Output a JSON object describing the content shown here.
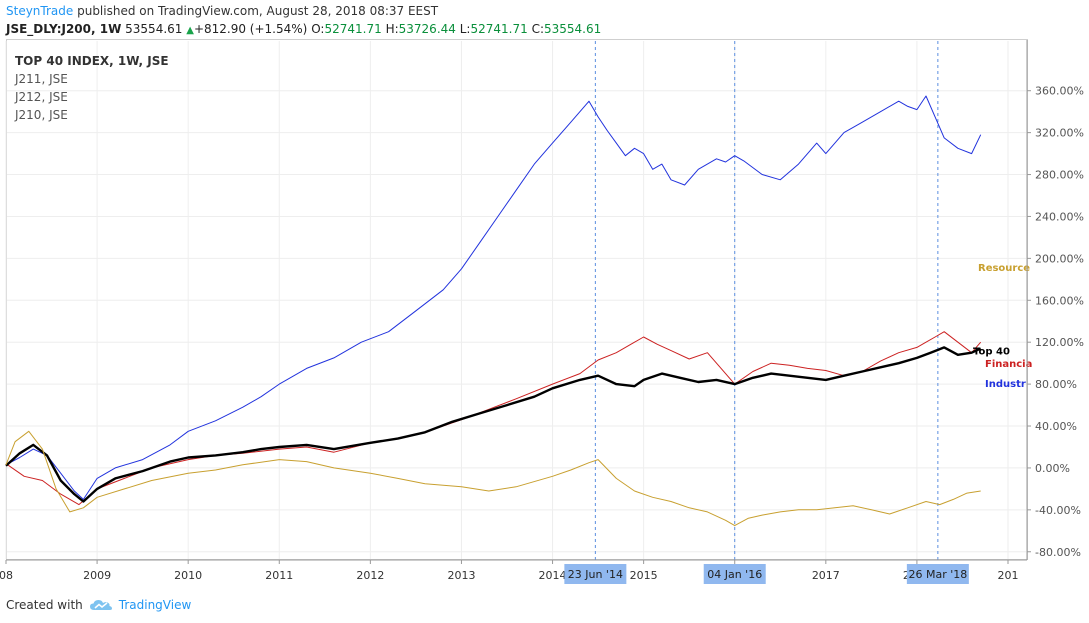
{
  "header": {
    "author": "SteynTrade",
    "published": "published on TradingView.com, August 28, 2018 08:37 EEST"
  },
  "quote": {
    "symbol": "JSE_DLY:J200, 1W",
    "price": "53554.61",
    "change": "+812.90 (+1.54%)",
    "o_label": "O:",
    "o": "52741.71",
    "h_label": "H:",
    "h": "53726.44",
    "l_label": "L:",
    "l": "52741.71",
    "c_label": "C:",
    "c": "53554.61"
  },
  "legend": {
    "main": "TOP 40 INDEX, 1W, JSE",
    "items": [
      "J211, JSE",
      "J212, JSE",
      "J210, JSE"
    ]
  },
  "footer": {
    "created_with": "Created with",
    "brand": "TradingView"
  },
  "colors": {
    "top40": "#000000",
    "financials": "#cc2222",
    "industrials": "#2233dd",
    "resources": "#c8a030",
    "marker_bg": "#90b8ef",
    "grid": "#eeeeee"
  },
  "chart_data": {
    "type": "line",
    "yaxis_unit": "%",
    "ylim": [
      -85,
      375
    ],
    "y_ticks": [
      360,
      320,
      280,
      240,
      200,
      160,
      120,
      80,
      40,
      0,
      -40,
      -80
    ],
    "x_ticks": [
      {
        "label": "08",
        "year": 2008.0
      },
      {
        "label": "2009",
        "year": 2009.0
      },
      {
        "label": "2010",
        "year": 2010.0
      },
      {
        "label": "2011",
        "year": 2011.0
      },
      {
        "label": "2012",
        "year": 2012.0
      },
      {
        "label": "2013",
        "year": 2013.0
      },
      {
        "label": "2014",
        "year": 2014.0
      },
      {
        "label": "2015",
        "year": 2015.0
      },
      {
        "label": "2016",
        "year": 2016.0
      },
      {
        "label": "2017",
        "year": 2017.0
      },
      {
        "label": "2018",
        "year": 2018.0
      },
      {
        "label": "201",
        "year": 2019.0
      }
    ],
    "xlim": [
      2008.0,
      2019.0
    ],
    "markers": [
      {
        "label": "23 Jun '14",
        "year": 2014.47
      },
      {
        "label": "04 Jan '16",
        "year": 2016.0
      },
      {
        "label": "26 Mar '18",
        "year": 2018.23
      }
    ],
    "series": [
      {
        "name": "Industr",
        "key": "industrials",
        "x": [
          2008.0,
          2008.15,
          2008.3,
          2008.45,
          2008.6,
          2008.75,
          2008.85,
          2009.0,
          2009.2,
          2009.5,
          2009.8,
          2010.0,
          2010.3,
          2010.6,
          2010.8,
          2011.0,
          2011.3,
          2011.6,
          2011.9,
          2012.2,
          2012.5,
          2012.8,
          2013.0,
          2013.2,
          2013.4,
          2013.6,
          2013.8,
          2014.0,
          2014.2,
          2014.4,
          2014.5,
          2014.6,
          2014.7,
          2014.8,
          2014.9,
          2015.0,
          2015.1,
          2015.2,
          2015.3,
          2015.45,
          2015.6,
          2015.8,
          2015.9,
          2016.0,
          2016.1,
          2016.3,
          2016.5,
          2016.7,
          2016.8,
          2016.9,
          2017.0,
          2017.2,
          2017.4,
          2017.6,
          2017.8,
          2017.9,
          2018.0,
          2018.1,
          2018.2,
          2018.3,
          2018.45,
          2018.6,
          2018.7
        ],
        "y": [
          3,
          10,
          18,
          12,
          -5,
          -22,
          -30,
          -10,
          0,
          8,
          22,
          35,
          45,
          58,
          68,
          80,
          95,
          105,
          120,
          130,
          150,
          170,
          190,
          215,
          240,
          265,
          290,
          310,
          330,
          350,
          335,
          322,
          310,
          298,
          305,
          300,
          285,
          290,
          275,
          270,
          285,
          295,
          292,
          298,
          293,
          280,
          275,
          290,
          300,
          310,
          300,
          320,
          330,
          340,
          350,
          345,
          342,
          355,
          335,
          315,
          305,
          300,
          318
        ]
      },
      {
        "name": "Financia",
        "key": "financials",
        "x": [
          2008.0,
          2008.2,
          2008.4,
          2008.6,
          2008.8,
          2009.0,
          2009.3,
          2009.6,
          2010.0,
          2010.3,
          2010.6,
          2011.0,
          2011.3,
          2011.6,
          2012.0,
          2012.3,
          2012.6,
          2013.0,
          2013.3,
          2013.6,
          2014.0,
          2014.3,
          2014.5,
          2014.7,
          2014.9,
          2015.0,
          2015.15,
          2015.3,
          2015.5,
          2015.7,
          2015.85,
          2016.0,
          2016.2,
          2016.4,
          2016.6,
          2016.8,
          2017.0,
          2017.2,
          2017.4,
          2017.6,
          2017.8,
          2018.0,
          2018.1,
          2018.2,
          2018.3,
          2018.45,
          2018.6,
          2018.7
        ],
        "y": [
          4,
          -8,
          -12,
          -25,
          -35,
          -20,
          -10,
          0,
          8,
          12,
          14,
          18,
          20,
          15,
          24,
          28,
          34,
          46,
          56,
          66,
          80,
          90,
          103,
          110,
          120,
          125,
          118,
          112,
          104,
          110,
          95,
          80,
          92,
          100,
          98,
          95,
          93,
          88,
          92,
          102,
          110,
          115,
          120,
          125,
          130,
          120,
          110,
          120
        ]
      },
      {
        "name": "Top 40",
        "key": "top40",
        "x": [
          2008.0,
          2008.15,
          2008.3,
          2008.45,
          2008.6,
          2008.75,
          2008.85,
          2009.0,
          2009.2,
          2009.5,
          2009.8,
          2010.0,
          2010.3,
          2010.6,
          2010.8,
          2011.0,
          2011.3,
          2011.6,
          2012.0,
          2012.3,
          2012.6,
          2012.9,
          2013.2,
          2013.5,
          2013.8,
          2014.0,
          2014.3,
          2014.5,
          2014.7,
          2014.9,
          2015.0,
          2015.2,
          2015.4,
          2015.6,
          2015.8,
          2016.0,
          2016.2,
          2016.4,
          2016.6,
          2016.8,
          2017.0,
          2017.2,
          2017.4,
          2017.6,
          2017.8,
          2018.0,
          2018.15,
          2018.3,
          2018.45,
          2018.6,
          2018.7
        ],
        "y": [
          2,
          14,
          22,
          12,
          -12,
          -25,
          -32,
          -20,
          -10,
          -3,
          6,
          10,
          12,
          15,
          18,
          20,
          22,
          18,
          24,
          28,
          34,
          44,
          52,
          60,
          68,
          76,
          84,
          88,
          80,
          78,
          84,
          90,
          86,
          82,
          84,
          80,
          86,
          90,
          88,
          86,
          84,
          88,
          92,
          96,
          100,
          105,
          110,
          115,
          108,
          110,
          114
        ]
      },
      {
        "name": "Resource",
        "key": "resources",
        "x": [
          2008.0,
          2008.1,
          2008.25,
          2008.4,
          2008.55,
          2008.7,
          2008.85,
          2009.0,
          2009.3,
          2009.6,
          2010.0,
          2010.3,
          2010.6,
          2011.0,
          2011.3,
          2011.6,
          2012.0,
          2012.3,
          2012.6,
          2013.0,
          2013.3,
          2013.6,
          2014.0,
          2014.2,
          2014.4,
          2014.5,
          2014.7,
          2014.9,
          2015.1,
          2015.3,
          2015.5,
          2015.7,
          2015.9,
          2016.0,
          2016.15,
          2016.3,
          2016.5,
          2016.7,
          2016.9,
          2017.1,
          2017.3,
          2017.5,
          2017.7,
          2017.9,
          2018.1,
          2018.25,
          2018.4,
          2018.55,
          2018.7
        ],
        "y": [
          3,
          25,
          35,
          18,
          -20,
          -42,
          -38,
          -28,
          -20,
          -12,
          -5,
          -2,
          3,
          8,
          6,
          0,
          -5,
          -10,
          -15,
          -18,
          -22,
          -18,
          -8,
          -2,
          5,
          8,
          -10,
          -22,
          -28,
          -32,
          -38,
          -42,
          -50,
          -55,
          -48,
          -45,
          -42,
          -40,
          -40,
          -38,
          -36,
          -40,
          -44,
          -38,
          -32,
          -35,
          -30,
          -24,
          -22
        ]
      }
    ],
    "end_labels": [
      {
        "key": "resources",
        "text": "Resource",
        "y": 192
      },
      {
        "key": "top40",
        "text": "Top 40",
        "y": 112
      },
      {
        "key": "financials",
        "text": "Financia",
        "y": 100
      },
      {
        "key": "industrials",
        "text": "Industr",
        "y": 81
      }
    ]
  }
}
